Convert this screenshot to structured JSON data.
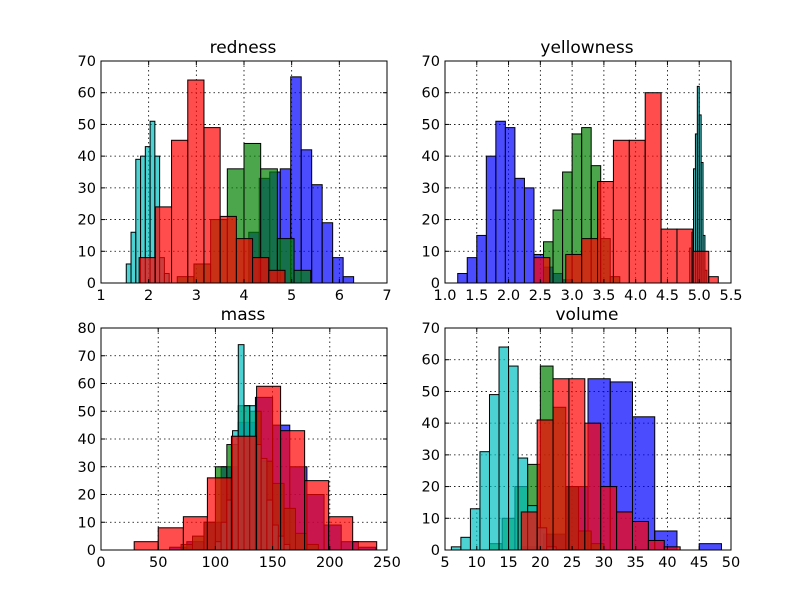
{
  "chart_data": [
    {
      "type": "bar",
      "title": "redness",
      "xlim": [
        1,
        7
      ],
      "ylim": [
        0,
        70
      ],
      "xticks": [
        1,
        2,
        3,
        4,
        5,
        6,
        7
      ],
      "yticks": [
        0,
        10,
        20,
        30,
        40,
        50,
        60,
        70
      ],
      "grid": true,
      "series": [
        {
          "color": "#0000ff",
          "bins": [
            [
              4.1,
              4.32,
              16
            ],
            [
              4.32,
              4.54,
              33
            ],
            [
              4.54,
              4.76,
              35
            ],
            [
              4.76,
              4.98,
              36
            ],
            [
              4.98,
              5.2,
              65
            ],
            [
              5.2,
              5.42,
              42
            ],
            [
              5.42,
              5.64,
              31
            ],
            [
              5.64,
              5.86,
              19
            ],
            [
              5.86,
              6.08,
              8
            ],
            [
              6.08,
              6.3,
              2
            ]
          ]
        },
        {
          "color": "#008000",
          "bins": [
            [
              2.6,
              2.95,
              2
            ],
            [
              2.95,
              3.3,
              6
            ],
            [
              3.3,
              3.65,
              20
            ],
            [
              3.65,
              4.0,
              36
            ],
            [
              4.0,
              4.35,
              44
            ],
            [
              4.35,
              4.7,
              36
            ],
            [
              4.7,
              5.05,
              14
            ],
            [
              5.05,
              5.4,
              4
            ]
          ]
        },
        {
          "color": "#00bfbf",
          "bins": [
            [
              1.53,
              1.63,
              6
            ],
            [
              1.63,
              1.73,
              16
            ],
            [
              1.73,
              1.83,
              39
            ],
            [
              1.83,
              1.93,
              40
            ],
            [
              1.93,
              2.03,
              43
            ],
            [
              2.03,
              2.13,
              51
            ],
            [
              2.13,
              2.23,
              40
            ],
            [
              2.23,
              2.33,
              8
            ],
            [
              2.33,
              2.43,
              3
            ]
          ]
        },
        {
          "color": "#ff0000",
          "bins": [
            [
              1.8,
              2.14,
              8
            ],
            [
              2.14,
              2.48,
              24
            ],
            [
              2.48,
              2.82,
              45
            ],
            [
              2.82,
              3.16,
              64
            ],
            [
              3.16,
              3.5,
              49
            ],
            [
              3.5,
              3.84,
              21
            ],
            [
              3.84,
              4.18,
              14
            ],
            [
              4.18,
              4.52,
              8
            ],
            [
              4.52,
              4.86,
              4
            ]
          ]
        }
      ]
    },
    {
      "type": "bar",
      "title": "yellowness",
      "xlim": [
        1.0,
        5.5
      ],
      "ylim": [
        0,
        70
      ],
      "xticks": [
        "1.0",
        "1.5",
        "2.0",
        "2.5",
        "3.0",
        "3.5",
        "4.0",
        "4.5",
        "5.0",
        "5.5"
      ],
      "yticks": [
        0,
        10,
        20,
        30,
        40,
        50,
        60,
        70
      ],
      "grid": true,
      "series": [
        {
          "color": "#0000ff",
          "bins": [
            [
              1.2,
              1.35,
              3
            ],
            [
              1.35,
              1.5,
              8
            ],
            [
              1.5,
              1.65,
              15
            ],
            [
              1.65,
              1.8,
              40
            ],
            [
              1.8,
              1.95,
              51
            ],
            [
              1.95,
              2.1,
              49
            ],
            [
              2.1,
              2.25,
              33
            ],
            [
              2.25,
              2.4,
              30
            ],
            [
              2.4,
              2.55,
              9
            ],
            [
              2.55,
              2.7,
              5
            ],
            [
              2.7,
              2.85,
              3
            ],
            [
              2.85,
              3.0,
              1
            ]
          ]
        },
        {
          "color": "#008000",
          "bins": [
            [
              2.55,
              2.7,
              13
            ],
            [
              2.7,
              2.85,
              23
            ],
            [
              2.85,
              3.0,
              35
            ],
            [
              3.0,
              3.15,
              47
            ],
            [
              3.15,
              3.3,
              49
            ],
            [
              3.3,
              3.45,
              37
            ],
            [
              3.45,
              3.6,
              14
            ],
            [
              3.6,
              3.75,
              2
            ]
          ]
        },
        {
          "color": "#00bfbf",
          "bins": [
            [
              4.85,
              4.88,
              11
            ],
            [
              4.88,
              4.91,
              16
            ],
            [
              4.91,
              4.94,
              36
            ],
            [
              4.94,
              4.97,
              47
            ],
            [
              4.97,
              5.0,
              62
            ],
            [
              5.0,
              5.03,
              53
            ],
            [
              5.03,
              5.06,
              38
            ],
            [
              5.06,
              5.09,
              15
            ],
            [
              5.09,
              5.12,
              4
            ]
          ]
        },
        {
          "color": "#ff0000",
          "bins": [
            [
              2.4,
              2.65,
              8
            ],
            [
              2.65,
              2.9,
              0
            ],
            [
              2.9,
              3.15,
              9
            ],
            [
              3.15,
              3.4,
              14
            ],
            [
              3.4,
              3.65,
              32
            ],
            [
              3.65,
              3.9,
              45
            ],
            [
              3.9,
              4.15,
              45
            ],
            [
              4.15,
              4.4,
              60
            ],
            [
              4.4,
              4.65,
              17
            ],
            [
              4.65,
              4.9,
              17
            ],
            [
              4.9,
              5.15,
              10
            ],
            [
              5.15,
              5.3,
              2
            ]
          ]
        }
      ]
    },
    {
      "type": "bar",
      "title": "mass",
      "xlim": [
        0,
        250
      ],
      "ylim": [
        0,
        80
      ],
      "xticks": [
        0,
        50,
        100,
        150,
        200,
        250
      ],
      "yticks": [
        0,
        10,
        20,
        30,
        40,
        50,
        60,
        70,
        80
      ],
      "grid": true,
      "series": [
        {
          "color": "#0000ff",
          "bins": [
            [
              60,
              75,
              1
            ],
            [
              75,
              90,
              3
            ],
            [
              90,
              105,
              10
            ],
            [
              105,
              120,
              30
            ],
            [
              120,
              135,
              46
            ],
            [
              135,
              150,
              55
            ],
            [
              150,
              165,
              45
            ],
            [
              165,
              180,
              30
            ],
            [
              180,
              195,
              20
            ],
            [
              195,
              210,
              9
            ],
            [
              210,
              225,
              3
            ],
            [
              225,
              240,
              1
            ]
          ]
        },
        {
          "color": "#008000",
          "bins": [
            [
              70,
              80,
              2
            ],
            [
              80,
              90,
              5
            ],
            [
              90,
              100,
              10
            ],
            [
              100,
              110,
              30
            ],
            [
              110,
              120,
              38
            ],
            [
              120,
              130,
              52
            ],
            [
              130,
              140,
              50
            ],
            [
              140,
              150,
              32
            ],
            [
              150,
              160,
              24
            ],
            [
              160,
              170,
              15
            ],
            [
              170,
              180,
              6
            ],
            [
              180,
              190,
              2
            ]
          ]
        },
        {
          "color": "#00bfbf",
          "bins": [
            [
              100,
              105,
              3
            ],
            [
              105,
              110,
              10
            ],
            [
              110,
              115,
              18
            ],
            [
              115,
              120,
              43
            ],
            [
              120,
              125,
              74
            ],
            [
              125,
              130,
              52
            ],
            [
              130,
              135,
              52
            ],
            [
              135,
              140,
              38
            ],
            [
              140,
              145,
              33
            ],
            [
              145,
              150,
              18
            ],
            [
              150,
              155,
              9
            ],
            [
              155,
              160,
              5
            ],
            [
              160,
              165,
              2
            ]
          ]
        },
        {
          "color": "#ff0000",
          "bins": [
            [
              29,
              50,
              3
            ],
            [
              50,
              72,
              8
            ],
            [
              72,
              93,
              12
            ],
            [
              93,
              114,
              26
            ],
            [
              114,
              136,
              41
            ],
            [
              136,
              157,
              59
            ],
            [
              157,
              178,
              43
            ],
            [
              178,
              199,
              25
            ],
            [
              199,
              220,
              12
            ],
            [
              220,
              241,
              3
            ]
          ]
        }
      ]
    },
    {
      "type": "bar",
      "title": "volume",
      "xlim": [
        5,
        50
      ],
      "ylim": [
        0,
        70
      ],
      "xticks": [
        5,
        10,
        15,
        20,
        25,
        30,
        35,
        40,
        45,
        50
      ],
      "yticks": [
        0,
        10,
        20,
        30,
        40,
        50,
        60,
        70
      ],
      "grid": true,
      "series": [
        {
          "color": "#0000ff",
          "bins": [
            [
              17,
              20.5,
              1
            ],
            [
              20.5,
              24,
              5
            ],
            [
              24,
              27.5,
              20
            ],
            [
              27.5,
              31,
              54
            ],
            [
              31,
              34.5,
              53
            ],
            [
              34.5,
              38,
              42
            ],
            [
              38,
              41.5,
              6
            ],
            [
              41.5,
              45,
              0
            ],
            [
              45,
              48.5,
              2
            ]
          ]
        },
        {
          "color": "#008000",
          "bins": [
            [
              12,
              14,
              2
            ],
            [
              14,
              16,
              10
            ],
            [
              16,
              18,
              20
            ],
            [
              18,
              20,
              27
            ],
            [
              20,
              22,
              58
            ],
            [
              22,
              24,
              45
            ],
            [
              24,
              26,
              20
            ],
            [
              26,
              28,
              6
            ],
            [
              28,
              30,
              2
            ]
          ]
        },
        {
          "color": "#00bfbf",
          "bins": [
            [
              6,
              7.5,
              1
            ],
            [
              7.5,
              9,
              4
            ],
            [
              9,
              10.5,
              13
            ],
            [
              10.5,
              12,
              31
            ],
            [
              12,
              13.5,
              49
            ],
            [
              13.5,
              15,
              64
            ],
            [
              15,
              16.5,
              58
            ],
            [
              16.5,
              18,
              29
            ],
            [
              18,
              19.5,
              14
            ],
            [
              19.5,
              21,
              7
            ],
            [
              21,
              22.5,
              1
            ]
          ]
        },
        {
          "color": "#ff0000",
          "bins": [
            [
              17,
              19.5,
              12
            ],
            [
              19.5,
              22,
              41
            ],
            [
              22,
              24.5,
              54
            ],
            [
              24.5,
              27,
              54
            ],
            [
              27,
              29.5,
              40
            ],
            [
              29.5,
              32,
              20
            ],
            [
              32,
              34.5,
              12
            ],
            [
              34.5,
              37,
              9
            ],
            [
              37,
              39.5,
              3
            ],
            [
              39.5,
              42,
              1
            ]
          ]
        }
      ]
    }
  ]
}
